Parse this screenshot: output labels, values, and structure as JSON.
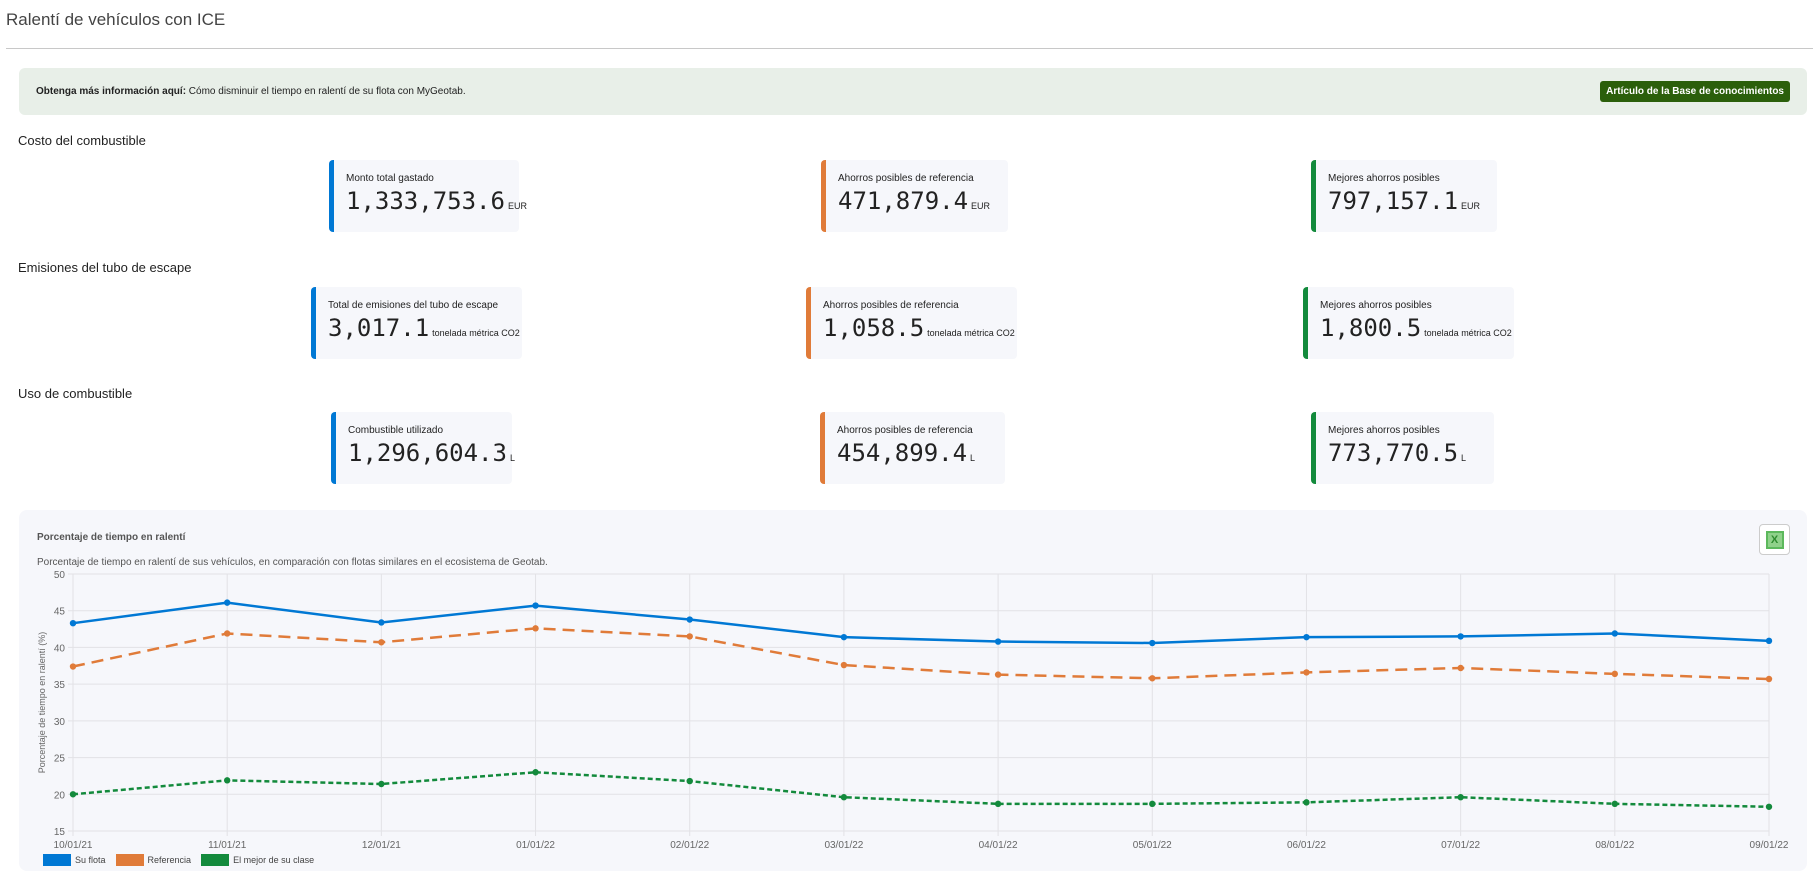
{
  "page": {
    "title": "Ralentí de vehículos con ICE"
  },
  "banner": {
    "bold": "Obtenga más información aquí:",
    "text": " Cómo disminuir el tiempo en ralentí de su flota con MyGeotab.",
    "button": "Artículo de la Base de conocimientos"
  },
  "sections": [
    {
      "title": "Costo del combustible",
      "cards": [
        {
          "label": "Monto total gastado",
          "value": "1,333,753.6",
          "unit": "EUR"
        },
        {
          "label": "Ahorros posibles de referencia",
          "value": "471,879.4",
          "unit": "EUR"
        },
        {
          "label": "Mejores ahorros posibles",
          "value": "797,157.1",
          "unit": "EUR"
        }
      ]
    },
    {
      "title": "Emisiones del tubo de escape",
      "cards": [
        {
          "label": "Total de emisiones del tubo de escape",
          "value": "3,017.1",
          "unit": "tonelada métrica CO2"
        },
        {
          "label": "Ahorros posibles de referencia",
          "value": "1,058.5",
          "unit": "tonelada métrica CO2"
        },
        {
          "label": "Mejores ahorros posibles",
          "value": "1,800.5",
          "unit": "tonelada métrica CO2"
        }
      ]
    },
    {
      "title": "Uso de combustible",
      "cards": [
        {
          "label": "Combustible utilizado",
          "value": "1,296,604.3",
          "unit": "L"
        },
        {
          "label": "Ahorros posibles de referencia",
          "value": "454,899.4",
          "unit": "L"
        },
        {
          "label": "Mejores ahorros posibles",
          "value": "773,770.5",
          "unit": "L"
        }
      ]
    }
  ],
  "export_icon": "excel-icon",
  "chart_data": {
    "type": "line",
    "title": "Porcentaje de tiempo en ralentí",
    "subtitle": "Porcentaje de tiempo en ralentí de sus vehículos, en comparación con flotas similares en el ecosistema de Geotab.",
    "ylabel": "Porcentaje de tiempo en ralentí (%)",
    "xlabel": "",
    "ylim": [
      15,
      50
    ],
    "yticks": [
      15,
      20,
      25,
      30,
      35,
      40,
      45,
      50
    ],
    "grid": true,
    "legend": "bottom-left",
    "categories": [
      "10/01/21",
      "11/01/21",
      "12/01/21",
      "01/01/22",
      "02/01/22",
      "03/01/22",
      "04/01/22",
      "05/01/22",
      "06/01/22",
      "07/01/22",
      "08/01/22",
      "09/01/22"
    ],
    "series": [
      {
        "name": "Su flota",
        "color": "#0078d4",
        "dash": "solid",
        "values": [
          43.3,
          46.1,
          43.4,
          45.7,
          43.8,
          41.4,
          40.8,
          40.6,
          41.4,
          41.5,
          41.9,
          40.9
        ]
      },
      {
        "name": "Referencia",
        "color": "#e07b39",
        "dash": "long",
        "values": [
          37.4,
          41.9,
          40.7,
          42.6,
          41.5,
          37.6,
          36.3,
          35.8,
          36.6,
          37.2,
          36.4,
          35.7
        ]
      },
      {
        "name": "El mejor de su clase",
        "color": "#138a3c",
        "dash": "short",
        "values": [
          20.0,
          21.9,
          21.4,
          23.0,
          21.8,
          19.6,
          18.7,
          18.7,
          18.9,
          19.6,
          18.7,
          18.3
        ]
      }
    ]
  }
}
